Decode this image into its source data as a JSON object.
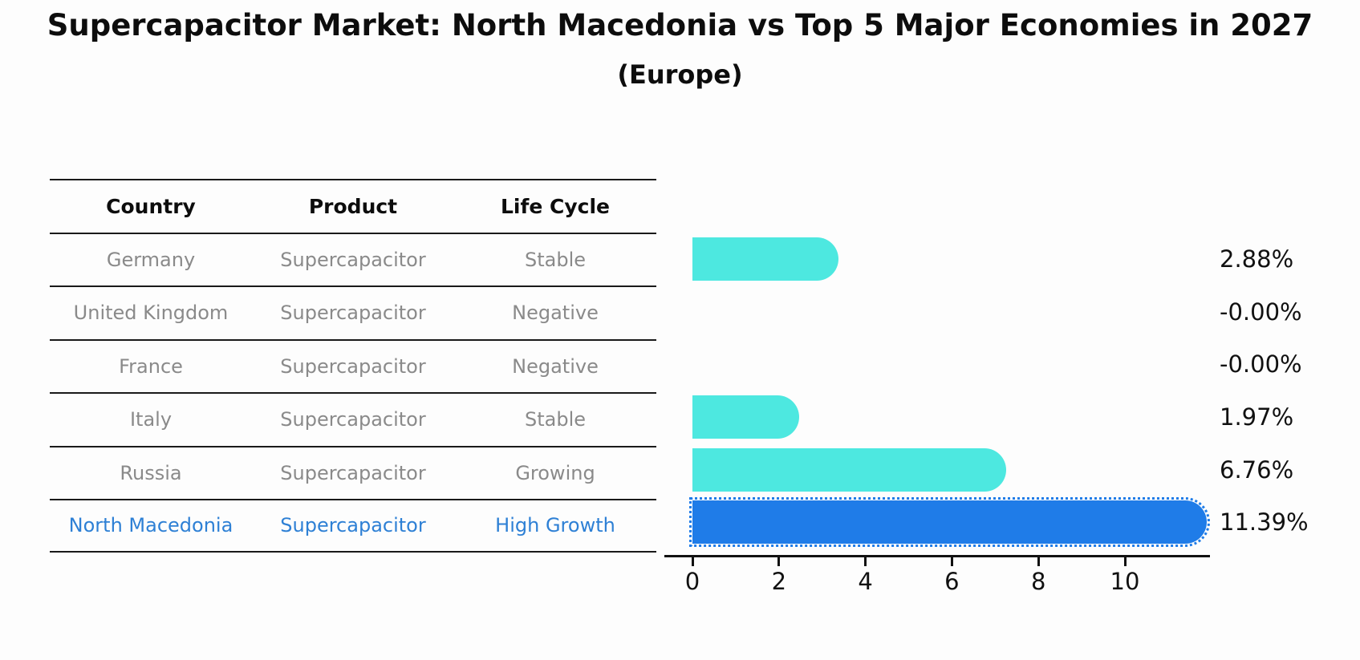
{
  "title": "Supercapacitor Market: North Macedonia vs Top 5 Major Economies in 2027",
  "subtitle": "(Europe)",
  "table": {
    "headers": [
      "Country",
      "Product",
      "Life Cycle"
    ],
    "rows": [
      {
        "country": "Germany",
        "product": "Supercapacitor",
        "life_cycle": "Stable",
        "highlight": false
      },
      {
        "country": "United Kingdom",
        "product": "Supercapacitor",
        "life_cycle": "Negative",
        "highlight": false
      },
      {
        "country": "France",
        "product": "Supercapacitor",
        "life_cycle": "Negative",
        "highlight": false
      },
      {
        "country": "Italy",
        "product": "Supercapacitor",
        "life_cycle": "Stable",
        "highlight": false
      },
      {
        "country": "Russia",
        "product": "Supercapacitor",
        "life_cycle": "Growing",
        "highlight": false
      },
      {
        "country": "North Macedonia",
        "product": "Supercapacitor",
        "life_cycle": "High Growth",
        "highlight": true
      }
    ]
  },
  "chart_data": {
    "type": "bar",
    "orientation": "horizontal",
    "categories": [
      "Germany",
      "United Kingdom",
      "France",
      "Italy",
      "Russia",
      "North Macedonia"
    ],
    "values": [
      2.88,
      -0.0,
      -0.0,
      1.97,
      6.76,
      11.39
    ],
    "value_labels": [
      "2.88%",
      "-0.00%",
      "-0.00%",
      "1.97%",
      "6.76%",
      "11.39%"
    ],
    "x_ticks": [
      0,
      2,
      4,
      6,
      8,
      10
    ],
    "xlim": [
      0,
      12
    ],
    "grid": false,
    "legend": false,
    "highlight_index": 5,
    "bar_style": "rounded-right-cap, highlight bar has dotted outline"
  },
  "colors": {
    "bar": "#4de8e0",
    "highlight_bar": "#1f7ce8",
    "highlight_text": "#2e80d5",
    "table_line": "#1a1a1a",
    "muted_text": "#8a8a8a"
  }
}
